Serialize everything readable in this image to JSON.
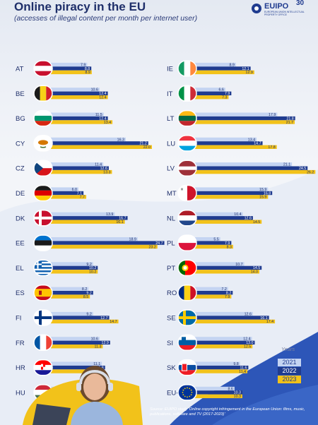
{
  "header": {
    "title": "Online piracy in the EU",
    "subtitle": "(accesses of illegal content per month per internet user)"
  },
  "logo": {
    "name": "EUIPO",
    "years": "30",
    "tagline": "EUROPEAN UNION INTELLECTUAL PROPERTY OFFICE"
  },
  "colors": {
    "series_2021": "#c4d4f2",
    "series_2022": "#1f3b8f",
    "series_2023": "#f2c21a",
    "background": "#f3f5f9",
    "bottom_band": "#2d56b8"
  },
  "legend": {
    "title": "Years",
    "items": [
      "2021",
      "2022",
      "2023"
    ]
  },
  "source": "Source: EUIPO study 'Online copyright infringement in the European Union: films, music, publications, software and TV (2017-2023)'",
  "chart_data": {
    "type": "bar",
    "orientation": "horizontal",
    "series_names": [
      "2021",
      "2022",
      "2023"
    ],
    "groups": [
      {
        "code": "AT",
        "flag": "austria-flag",
        "values": [
          7.9,
          8.8,
          8.9
        ]
      },
      {
        "code": "BE",
        "flag": "belgium-flag",
        "values": [
          10.6,
          12.4,
          12.4
        ]
      },
      {
        "code": "BG",
        "flag": "bulgaria-flag",
        "values": [
          11.5,
          12.4,
          13.4
        ]
      },
      {
        "code": "CY",
        "flag": "cyprus-flag",
        "values": [
          16.3,
          21.2,
          22.0
        ]
      },
      {
        "code": "CZ",
        "flag": "czechia-flag",
        "values": [
          11.4,
          12.6,
          13.3
        ]
      },
      {
        "code": "DE",
        "flag": "germany-flag",
        "values": [
          6.0,
          7.1,
          7.7
        ]
      },
      {
        "code": "DK",
        "flag": "denmark-flag",
        "values": [
          13.9,
          16.7,
          16.1
        ]
      },
      {
        "code": "EE",
        "flag": "estonia-flag",
        "values": [
          18.9,
          24.7,
          23.2
        ]
      },
      {
        "code": "EL",
        "flag": "greece-flag",
        "values": [
          9.2,
          10.2,
          10.2
        ]
      },
      {
        "code": "ES",
        "flag": "spain-flag",
        "values": [
          8.2,
          9.2,
          8.5
        ]
      },
      {
        "code": "FI",
        "flag": "finland-flag",
        "values": [
          9.2,
          12.7,
          14.7
        ]
      },
      {
        "code": "FR",
        "flag": "france-flag",
        "values": [
          10.6,
          12.9,
          11.3
        ]
      },
      {
        "code": "HR",
        "flag": "croatia-flag",
        "values": [
          11.1,
          11.8,
          10.9
        ]
      },
      {
        "code": "HU",
        "flag": "hungary-flag",
        "values": [
          11.9,
          14.2,
          14.3
        ]
      },
      {
        "code": "IE",
        "flag": "ireland-flag",
        "values": [
          8.9,
          12.1,
          12.9
        ]
      },
      {
        "code": "IT",
        "flag": "italy-flag",
        "values": [
          6.6,
          7.9,
          7.3
        ]
      },
      {
        "code": "LT",
        "flag": "lithuania-flag",
        "values": [
          17.9,
          21.8,
          21.7
        ]
      },
      {
        "code": "LU",
        "flag": "luxembourg-flag",
        "values": [
          13.4,
          14.7,
          17.8
        ]
      },
      {
        "code": "LV",
        "flag": "latvia-flag",
        "values": [
          21.1,
          24.5,
          26.2
        ]
      },
      {
        "code": "MT",
        "flag": "malta-flag",
        "values": [
          15.9,
          16.8,
          15.9
        ]
      },
      {
        "code": "NL",
        "flag": "netherlands-flag",
        "values": [
          10.4,
          12.6,
          14.5
        ]
      },
      {
        "code": "PL",
        "flag": "poland-flag",
        "values": [
          5.5,
          7.9,
          8.3
        ]
      },
      {
        "code": "PT",
        "flag": "portugal-flag",
        "values": [
          10.7,
          14.5,
          14.0
        ]
      },
      {
        "code": "RO",
        "flag": "romania-flag",
        "values": [
          7.2,
          8.2,
          7.9
        ]
      },
      {
        "code": "SE",
        "flag": "sweden-flag",
        "values": [
          12.6,
          16.1,
          17.4
        ]
      },
      {
        "code": "SI",
        "flag": "slovenia-flag",
        "values": [
          12.4,
          13.0,
          12.5
        ]
      },
      {
        "code": "SK",
        "flag": "slovakia-flag",
        "values": [
          9.8,
          11.6,
          11.4
        ]
      },
      {
        "code": "EU-27",
        "flag": "eu-flag",
        "values": [
          8.6,
          10.3,
          10.3
        ]
      }
    ]
  }
}
